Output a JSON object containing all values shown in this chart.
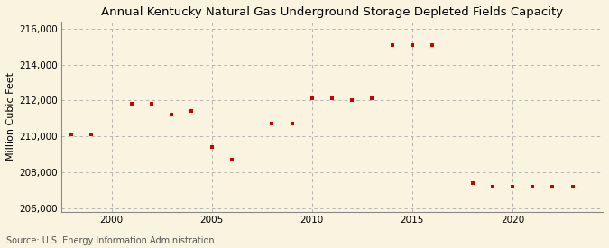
{
  "title": "Annual Kentucky Natural Gas Underground Storage Depleted Fields Capacity",
  "ylabel": "Million Cubic Feet",
  "source": "Source: U.S. Energy Information Administration",
  "background_color": "#faf3e0",
  "plot_background_color": "#faf3e0",
  "marker_color": "#cc0000",
  "grid_color": "#aaaaaa",
  "years": [
    1998,
    1999,
    2001,
    2002,
    2003,
    2004,
    2005,
    2006,
    2008,
    2009,
    2010,
    2011,
    2012,
    2013,
    2014,
    2015,
    2016,
    2018,
    2019,
    2020,
    2021,
    2022,
    2023
  ],
  "values": [
    210100,
    210100,
    211800,
    211800,
    211200,
    211400,
    209400,
    208700,
    210700,
    210700,
    212100,
    212100,
    212000,
    212100,
    215100,
    215100,
    215100,
    207400,
    207200,
    207200,
    207200,
    207200,
    207200
  ],
  "xlim": [
    1997.5,
    2024.5
  ],
  "ylim": [
    205800,
    216400
  ],
  "yticks": [
    206000,
    208000,
    210000,
    212000,
    214000,
    216000
  ],
  "xticks": [
    2000,
    2005,
    2010,
    2015,
    2020
  ],
  "title_fontsize": 9.5,
  "label_fontsize": 8,
  "tick_fontsize": 7.5,
  "source_fontsize": 7
}
